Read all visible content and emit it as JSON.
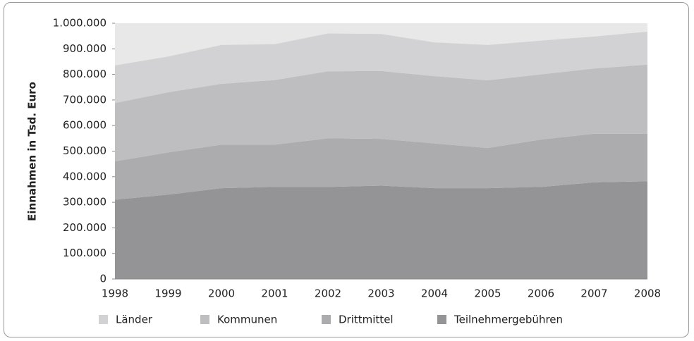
{
  "chart_data": {
    "type": "stacked-area",
    "y_label": "Einnahmen in Tsd. Euro",
    "categories": [
      "1998",
      "1999",
      "2000",
      "2001",
      "2002",
      "2003",
      "2004",
      "2005",
      "2006",
      "2007",
      "2008"
    ],
    "series": [
      {
        "name": "Teilnehmergebühren",
        "color": "#949496",
        "values": [
          310000,
          330000,
          355000,
          360000,
          360000,
          365000,
          355000,
          355000,
          360000,
          378000,
          382000
        ]
      },
      {
        "name": "Drittmittel",
        "color": "#acacae",
        "values": [
          150000,
          165000,
          170000,
          165000,
          190000,
          183000,
          175000,
          157000,
          185000,
          190000,
          186000
        ]
      },
      {
        "name": "Kommunen",
        "color": "#bebec0",
        "values": [
          228000,
          235000,
          238000,
          253000,
          262000,
          265000,
          263000,
          265000,
          255000,
          255000,
          270000
        ]
      },
      {
        "name": "Länder",
        "color": "#d2d2d4",
        "values": [
          147000,
          140000,
          152000,
          140000,
          148000,
          145000,
          132000,
          138000,
          132000,
          125000,
          129000
        ]
      }
    ],
    "legend_order": [
      3,
      2,
      1,
      0
    ],
    "plot_background": "#e8e8e8",
    "ylim": [
      0,
      1000000
    ],
    "yticks": [
      0,
      {
        "value": 100000,
        "label": "100.000"
      },
      {
        "value": 200000,
        "label": "200.000"
      },
      {
        "value": 300000,
        "label": "300.000"
      },
      {
        "value": 400000,
        "label": "400.000"
      },
      {
        "value": 500000,
        "label": "500.000"
      },
      {
        "value": 600000,
        "label": "600.000"
      },
      {
        "value": 700000,
        "label": "700.000"
      },
      {
        "value": 800000,
        "label": "800.000"
      },
      {
        "value": 900000,
        "label": "900.000"
      },
      {
        "value": 1000000,
        "label": "1.000.000"
      }
    ]
  }
}
